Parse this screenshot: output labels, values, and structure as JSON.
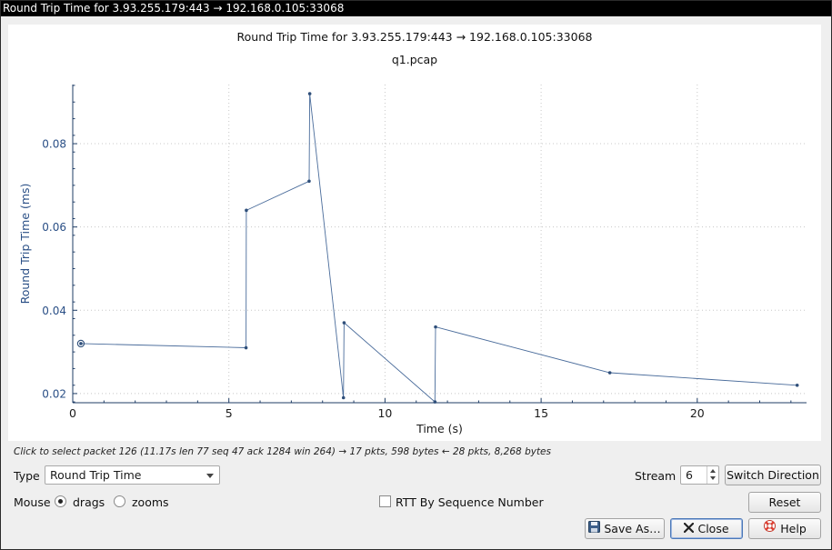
{
  "window": {
    "title": "Round Trip Time for 3.93.255.179:443 → 192.168.0.105:33068"
  },
  "chart_data": {
    "type": "line",
    "title": "Round Trip Time for 3.93.255.179:443 → 192.168.0.105:33068",
    "subtitle": "q1.pcap",
    "xlabel": "Time (s)",
    "ylabel": "Round Trip Time (ms)",
    "xlim": [
      0,
      23.5
    ],
    "ylim": [
      0.0178,
      0.0942
    ],
    "x_ticks": [
      0,
      5,
      10,
      15,
      20
    ],
    "y_ticks": [
      0.02,
      0.04,
      0.06,
      0.08
    ],
    "y_tick_labels": [
      "0.02",
      "0.04",
      "0.06",
      "0.08"
    ],
    "grid": true,
    "series": [
      {
        "color": "#4a6c9b",
        "x": [
          0.26,
          5.55,
          5.56,
          7.57,
          7.59,
          8.67,
          8.69,
          11.6,
          11.62,
          17.2,
          23.2
        ],
        "y": [
          0.032,
          0.031,
          0.064,
          0.071,
          0.092,
          0.019,
          0.037,
          0.018,
          0.036,
          0.025,
          0.022
        ]
      }
    ],
    "selected_point": {
      "x": 0.26,
      "y": 0.032
    }
  },
  "hint": "Click to select packet 126 (11.17s len 77 seq 47 ack 1284 win 264) → 17 pkts, 598 bytes ← 28 pkts, 8,268 bytes",
  "controls": {
    "type_label": "Type",
    "type_value": "Round Trip Time",
    "stream_label": "Stream",
    "stream_value": "6",
    "switch_direction": "Switch Direction",
    "mouse_label": "Mouse",
    "drags_label": "drags",
    "zooms_label": "zooms",
    "mouse_mode": "drags",
    "rtt_by_seq_label": "RTT By Sequence Number",
    "rtt_by_seq_checked": false,
    "reset": "Reset",
    "save_as": "Save As…",
    "close": "Close",
    "help": "Help"
  }
}
